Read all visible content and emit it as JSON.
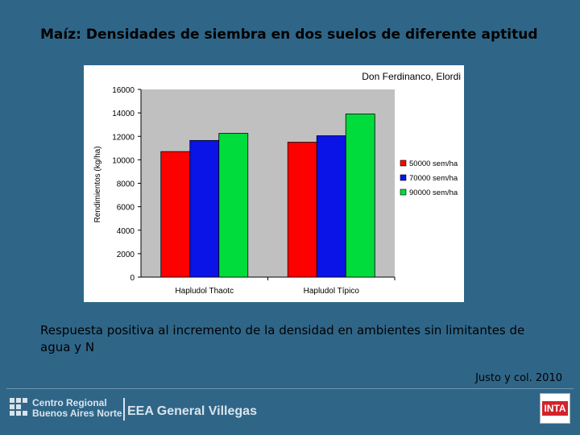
{
  "slide": {
    "title": "Maíz: Densidades de siembra en dos suelos de diferente aptitud",
    "body": "Respuesta positiva al incremento de la densidad en ambientes sin limitantes de agua y N",
    "citation": "Justo y col. 2010"
  },
  "footer": {
    "org_line1": "Centro Regional",
    "org_line2": "Buenos Aires Norte",
    "station": "EEA General Villegas",
    "badge": "INTA"
  },
  "chart_data": {
    "type": "bar",
    "title": "Don Ferdinanco, Elordi",
    "ylabel": "Rendimientos (kg/ha)",
    "xlabel": "",
    "categories": [
      "Hapludol Thaotc",
      "Hapludol Típico"
    ],
    "series": [
      {
        "name": "50000 sem/ha",
        "color": "#ff0000",
        "values": [
          10700,
          11500
        ]
      },
      {
        "name": "70000 sem/ha",
        "color": "#0a14e6",
        "values": [
          11650,
          12050
        ]
      },
      {
        "name": "90000 sem/ha",
        "color": "#00dc3c",
        "values": [
          12250,
          13900
        ]
      }
    ],
    "ylim": [
      0,
      16000
    ],
    "yticks": [
      0,
      2000,
      4000,
      6000,
      8000,
      10000,
      12000,
      14000,
      16000
    ],
    "ytick_labels": [
      "0",
      "2000",
      "4000",
      "6000",
      "8000",
      "10000",
      "12000",
      "14000",
      "16000"
    ],
    "plot_background": "#c0c0c0",
    "grid": false,
    "legend_position": "right"
  }
}
